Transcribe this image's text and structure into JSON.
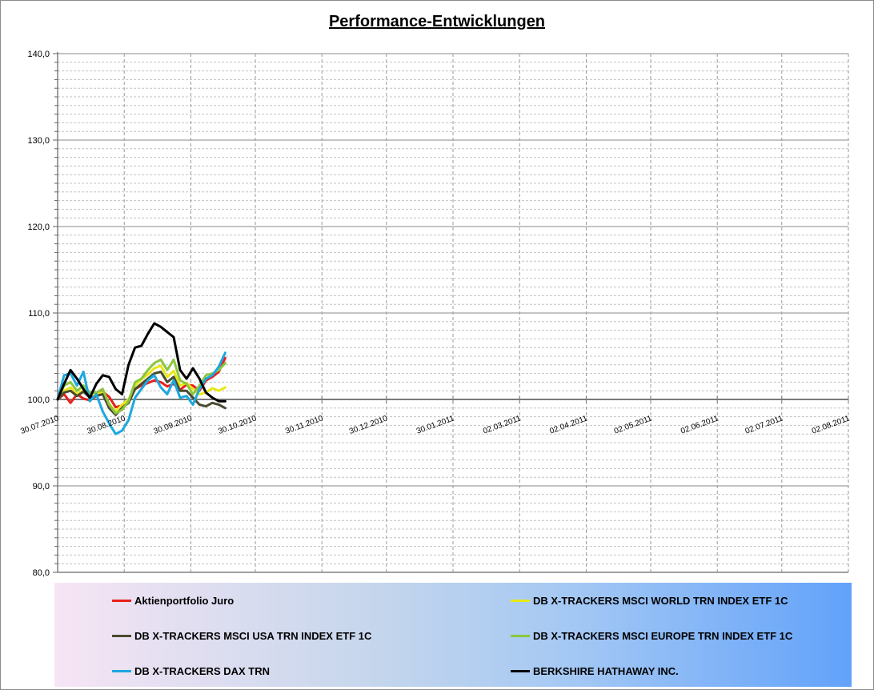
{
  "chart_data": {
    "type": "line",
    "title": "Performance-Entwicklungen",
    "xlabel": "",
    "ylabel": "",
    "ylim": [
      80,
      140
    ],
    "xlim": [
      "2010-07-30",
      "2011-08-02"
    ],
    "y_ticks": [
      "80,0",
      "90,0",
      "100,0",
      "110,0",
      "120,0",
      "130,0",
      "140,0"
    ],
    "x_ticks": [
      {
        "label": "30.07.2010",
        "date": "2010-07-30"
      },
      {
        "label": "30.08.2010",
        "date": "2010-08-30"
      },
      {
        "label": "30.09.2010",
        "date": "2010-09-30"
      },
      {
        "label": "30.10.2010",
        "date": "2010-10-30"
      },
      {
        "label": "30.11.2010",
        "date": "2010-11-30"
      },
      {
        "label": "30.12.2010",
        "date": "2010-12-30"
      },
      {
        "label": "30.01.2011",
        "date": "2011-01-30"
      },
      {
        "label": "02.03.2011",
        "date": "2011-03-02"
      },
      {
        "label": "02.04.2011",
        "date": "2011-04-02"
      },
      {
        "label": "02.05.2011",
        "date": "2011-05-02"
      },
      {
        "label": "02.06.2011",
        "date": "2011-06-02"
      },
      {
        "label": "02.07.2011",
        "date": "2011-07-02"
      },
      {
        "label": "02.08.2011",
        "date": "2011-08-02"
      }
    ],
    "grid": true,
    "reference_line": 100,
    "legend_position": "bottom",
    "series": [
      {
        "name": "Aktienportfolio Juro",
        "color": "#e8201c",
        "x": [
          "2010-07-30",
          "2010-08-02",
          "2010-08-05",
          "2010-08-08",
          "2010-08-11",
          "2010-08-14",
          "2010-08-17",
          "2010-08-20",
          "2010-08-23",
          "2010-08-26",
          "2010-08-29",
          "2010-09-01",
          "2010-09-04",
          "2010-09-07",
          "2010-09-10",
          "2010-09-13",
          "2010-09-16",
          "2010-09-19",
          "2010-09-22",
          "2010-09-25",
          "2010-09-28",
          "2010-10-01",
          "2010-10-04",
          "2010-10-07",
          "2010-10-10",
          "2010-10-13",
          "2010-10-16"
        ],
        "y": [
          100.0,
          100.6,
          99.6,
          100.6,
          100.1,
          99.9,
          100.4,
          100.9,
          100.3,
          99.1,
          99.3,
          99.6,
          101.2,
          101.6,
          101.9,
          102.2,
          102.0,
          101.5,
          101.8,
          101.1,
          101.7,
          101.6,
          101.0,
          102.2,
          102.6,
          103.2,
          104.8
        ]
      },
      {
        "name": "DB X-TRACKERS MSCI WORLD TRN INDEX ETF 1C",
        "color": "#e8e818",
        "x": [
          "2010-07-30",
          "2010-08-02",
          "2010-08-05",
          "2010-08-08",
          "2010-08-11",
          "2010-08-14",
          "2010-08-17",
          "2010-08-20",
          "2010-08-23",
          "2010-08-26",
          "2010-08-29",
          "2010-09-01",
          "2010-09-04",
          "2010-09-07",
          "2010-09-10",
          "2010-09-13",
          "2010-09-16",
          "2010-09-19",
          "2010-09-22",
          "2010-09-25",
          "2010-09-28",
          "2010-10-01",
          "2010-10-04",
          "2010-10-07",
          "2010-10-10",
          "2010-10-13",
          "2010-10-16"
        ],
        "y": [
          100.0,
          101.0,
          101.4,
          100.6,
          101.1,
          100.5,
          100.6,
          100.8,
          99.5,
          98.6,
          99.4,
          100.0,
          101.6,
          102.3,
          102.9,
          103.6,
          103.9,
          102.6,
          103.3,
          101.6,
          101.9,
          101.2,
          100.6,
          100.8,
          101.3,
          101.0,
          101.4
        ]
      },
      {
        "name": "DB X-TRACKERS MSCI USA TRN INDEX ETF 1C",
        "color": "#4a4a30",
        "x": [
          "2010-07-30",
          "2010-08-02",
          "2010-08-05",
          "2010-08-08",
          "2010-08-11",
          "2010-08-14",
          "2010-08-17",
          "2010-08-20",
          "2010-08-23",
          "2010-08-26",
          "2010-08-29",
          "2010-09-01",
          "2010-09-04",
          "2010-09-07",
          "2010-09-10",
          "2010-09-13",
          "2010-09-16",
          "2010-09-19",
          "2010-09-22",
          "2010-09-25",
          "2010-09-28",
          "2010-10-01",
          "2010-10-04",
          "2010-10-07",
          "2010-10-10",
          "2010-10-13",
          "2010-10-16"
        ],
        "y": [
          100.0,
          100.8,
          101.0,
          100.4,
          100.9,
          100.2,
          100.4,
          100.6,
          99.0,
          98.2,
          99.0,
          99.6,
          101.2,
          101.8,
          102.4,
          103.0,
          103.2,
          102.0,
          102.6,
          101.0,
          101.0,
          100.2,
          99.4,
          99.2,
          99.6,
          99.4,
          99.0
        ]
      },
      {
        "name": "DB X-TRACKERS MSCI EUROPE TRN INDEX ETF 1C",
        "color": "#8cc63f",
        "x": [
          "2010-07-30",
          "2010-08-02",
          "2010-08-05",
          "2010-08-08",
          "2010-08-11",
          "2010-08-14",
          "2010-08-17",
          "2010-08-20",
          "2010-08-23",
          "2010-08-26",
          "2010-08-29",
          "2010-09-01",
          "2010-09-04",
          "2010-09-07",
          "2010-09-10",
          "2010-09-13",
          "2010-09-16",
          "2010-09-19",
          "2010-09-22",
          "2010-09-25",
          "2010-09-28",
          "2010-10-01",
          "2010-10-04",
          "2010-10-07",
          "2010-10-10",
          "2010-10-13",
          "2010-10-16"
        ],
        "y": [
          100.0,
          101.6,
          102.0,
          101.0,
          101.6,
          100.8,
          100.8,
          101.2,
          99.4,
          98.4,
          98.8,
          99.8,
          102.0,
          102.4,
          103.4,
          104.2,
          104.6,
          103.4,
          104.6,
          102.2,
          101.8,
          100.6,
          101.6,
          102.8,
          103.0,
          103.4,
          104.2
        ]
      },
      {
        "name": "DB X-TRACKERS DAX TRN",
        "color": "#1ca8e0",
        "x": [
          "2010-07-30",
          "2010-08-02",
          "2010-08-05",
          "2010-08-08",
          "2010-08-11",
          "2010-08-14",
          "2010-08-17",
          "2010-08-20",
          "2010-08-23",
          "2010-08-26",
          "2010-08-29",
          "2010-09-01",
          "2010-09-04",
          "2010-09-07",
          "2010-09-10",
          "2010-09-13",
          "2010-09-16",
          "2010-09-19",
          "2010-09-22",
          "2010-09-25",
          "2010-09-28",
          "2010-10-01",
          "2010-10-04",
          "2010-10-07",
          "2010-10-10",
          "2010-10-13",
          "2010-10-16"
        ],
        "y": [
          100.0,
          102.8,
          103.0,
          101.6,
          103.2,
          99.8,
          100.6,
          98.6,
          97.2,
          96.0,
          96.4,
          97.6,
          100.2,
          101.2,
          102.2,
          102.8,
          101.4,
          100.6,
          102.2,
          100.2,
          100.4,
          99.4,
          101.2,
          102.4,
          102.8,
          103.8,
          105.4
        ]
      },
      {
        "name": "BERKSHIRE HATHAWAY INC.",
        "color": "#000000",
        "x": [
          "2010-07-30",
          "2010-08-02",
          "2010-08-05",
          "2010-08-08",
          "2010-08-11",
          "2010-08-14",
          "2010-08-17",
          "2010-08-20",
          "2010-08-23",
          "2010-08-26",
          "2010-08-29",
          "2010-09-01",
          "2010-09-04",
          "2010-09-07",
          "2010-09-10",
          "2010-09-13",
          "2010-09-16",
          "2010-09-19",
          "2010-09-22",
          "2010-09-25",
          "2010-09-28",
          "2010-10-01",
          "2010-10-04",
          "2010-10-07",
          "2010-10-10",
          "2010-10-13",
          "2010-10-16"
        ],
        "y": [
          100.0,
          101.8,
          103.4,
          102.4,
          101.2,
          100.2,
          101.8,
          102.8,
          102.6,
          101.2,
          100.6,
          104.0,
          106.0,
          106.2,
          107.6,
          108.8,
          108.4,
          107.8,
          107.2,
          103.4,
          102.4,
          103.6,
          102.4,
          100.8,
          100.2,
          99.8,
          99.8
        ]
      }
    ]
  }
}
